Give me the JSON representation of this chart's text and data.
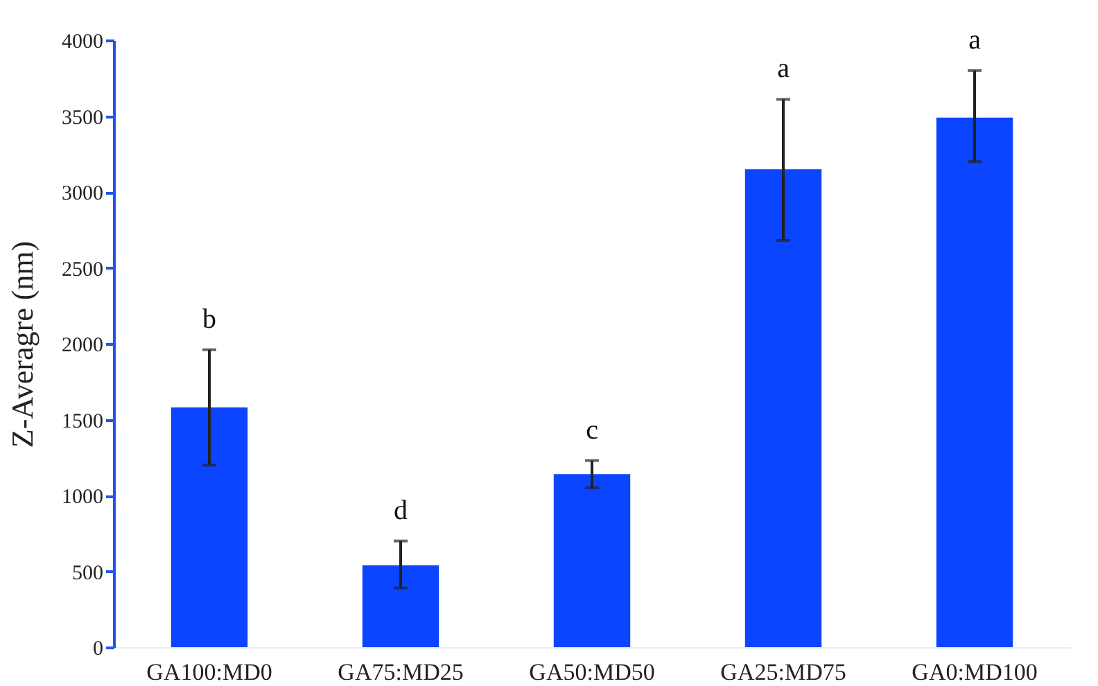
{
  "chart_data": {
    "type": "bar",
    "ylabel": "Z-Averagre (nm)",
    "categories": [
      "GA100:MD0",
      "GA75:MD25",
      "GA50:MD50",
      "GA25:MD75",
      "GA0:MD100"
    ],
    "values": [
      1580,
      540,
      1140,
      3150,
      3490
    ],
    "errors": [
      [
        1200,
        1960
      ],
      [
        390,
        700
      ],
      [
        1050,
        1230
      ],
      [
        2680,
        3610
      ],
      [
        3200,
        3800
      ]
    ],
    "color": "#0b45ff",
    "ylim": [
      0,
      4000
    ],
    "yticks": [
      0,
      500,
      1000,
      1500,
      2000,
      2500,
      3000,
      3500,
      4000
    ],
    "grid": false,
    "annotations": [
      "b",
      "d",
      "c",
      "a",
      "a"
    ]
  }
}
